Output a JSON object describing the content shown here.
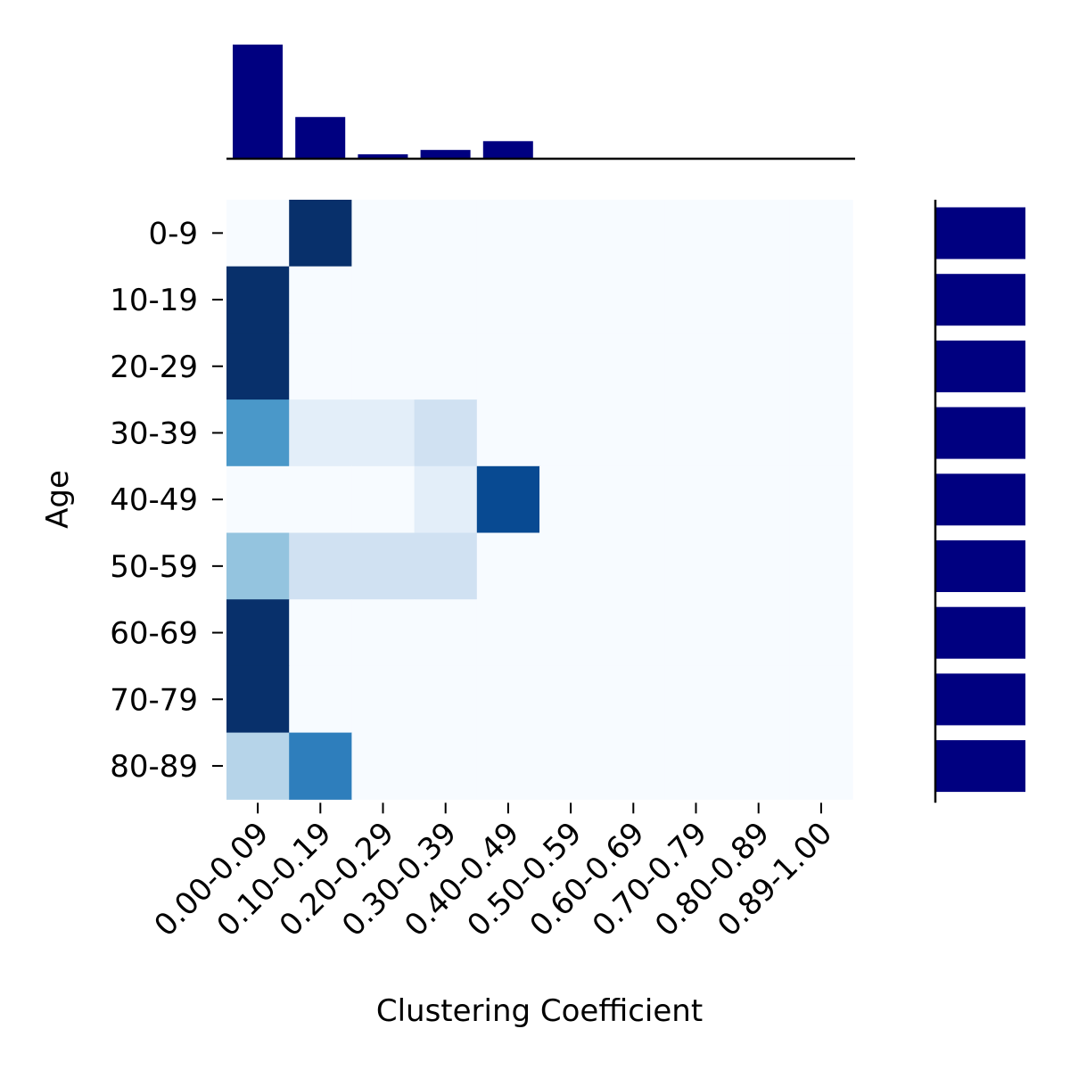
{
  "chart_data": {
    "type": "heatmap",
    "xlabel": "Clustering Coefficient",
    "ylabel": "Age",
    "x_categories": [
      "0.00-0.09",
      "0.10-0.19",
      "0.20-0.29",
      "0.30-0.39",
      "0.40-0.49",
      "0.50-0.59",
      "0.60-0.69",
      "0.70-0.79",
      "0.80-0.89",
      "0.89-1.00"
    ],
    "y_categories": [
      "0-9",
      "10-19",
      "20-29",
      "30-39",
      "40-49",
      "50-59",
      "60-69",
      "70-79",
      "80-89"
    ],
    "values": [
      [
        0.0,
        1.0,
        0,
        0,
        0,
        0,
        0,
        0,
        0,
        0
      ],
      [
        1.0,
        0,
        0,
        0,
        0,
        0,
        0,
        0,
        0,
        0
      ],
      [
        1.0,
        0,
        0,
        0,
        0,
        0,
        0,
        0,
        0,
        0
      ],
      [
        0.6,
        0.1,
        0.1,
        0.2,
        0,
        0,
        0,
        0,
        0,
        0
      ],
      [
        0,
        0,
        0,
        0.1,
        0.9,
        0,
        0,
        0,
        0,
        0
      ],
      [
        0.4,
        0.2,
        0.2,
        0.2,
        0,
        0,
        0,
        0,
        0,
        0
      ],
      [
        1.0,
        0,
        0,
        0,
        0,
        0,
        0,
        0,
        0,
        0
      ],
      [
        1.0,
        0,
        0,
        0,
        0,
        0,
        0,
        0,
        0,
        0
      ],
      [
        0.3,
        0.7,
        0,
        0,
        0,
        0,
        0,
        0,
        0,
        0
      ]
    ],
    "colormap": "Blues",
    "top_marginal": {
      "type": "bar",
      "values": [
        5.2,
        1.9,
        0.2,
        0.4,
        0.8,
        0,
        0,
        0,
        0,
        0
      ],
      "color": "#000080"
    },
    "right_marginal": {
      "type": "bar",
      "values": [
        1,
        1,
        1,
        1,
        1,
        1,
        1,
        1,
        1
      ],
      "color": "#000080"
    }
  }
}
